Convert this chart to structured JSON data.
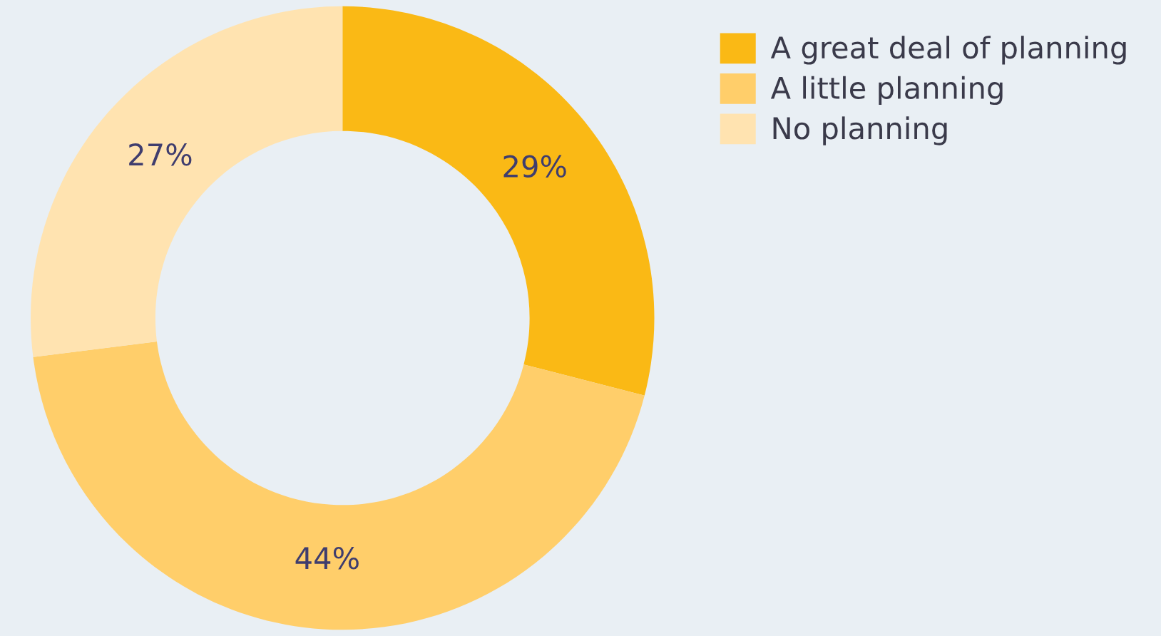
{
  "chart_data": {
    "type": "donut",
    "categories": [
      "A great deal of planning",
      "A little planning",
      "No planning"
    ],
    "values": [
      29,
      44,
      27
    ],
    "value_labels": [
      "29%",
      "44%",
      "27%"
    ],
    "colors": [
      "#fab915",
      "#ffce6a",
      "#ffe3b0"
    ],
    "legend": "top right"
  }
}
